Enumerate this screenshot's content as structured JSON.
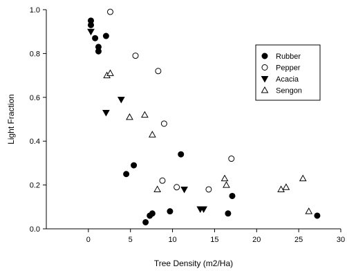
{
  "chart_data": {
    "type": "scatter",
    "title": "",
    "xlabel": "Tree Density (m2/Ha)",
    "ylabel": "Light Fraction",
    "xlim": [
      -5,
      30
    ],
    "ylim": [
      0,
      1.0
    ],
    "xticks": [
      0,
      5,
      10,
      15,
      20,
      25,
      30
    ],
    "yticks": [
      0.0,
      0.2,
      0.4,
      0.6,
      0.8,
      1.0
    ],
    "xtick_labels": [
      "0",
      "5",
      "10",
      "15",
      "20",
      "25",
      "30"
    ],
    "ytick_labels": [
      "0.0",
      "0.2",
      "0.4",
      "0.6",
      "0.8",
      "1.0"
    ],
    "grid": false,
    "legend_position": "top-right",
    "series": [
      {
        "name": "Rubber",
        "marker": "filled-circle",
        "color": "#000000",
        "points": [
          [
            0.3,
            0.95
          ],
          [
            0.3,
            0.93
          ],
          [
            0.8,
            0.87
          ],
          [
            1.2,
            0.83
          ],
          [
            1.2,
            0.81
          ],
          [
            2.1,
            0.88
          ],
          [
            4.5,
            0.25
          ],
          [
            5.4,
            0.29
          ],
          [
            6.8,
            0.03
          ],
          [
            7.3,
            0.06
          ],
          [
            7.6,
            0.07
          ],
          [
            9.7,
            0.08
          ],
          [
            11.0,
            0.34
          ],
          [
            16.6,
            0.07
          ],
          [
            17.1,
            0.15
          ],
          [
            27.2,
            0.06
          ]
        ]
      },
      {
        "name": "Pepper",
        "marker": "open-circle",
        "color": "#000000",
        "points": [
          [
            2.6,
            0.99
          ],
          [
            5.6,
            0.79
          ],
          [
            8.3,
            0.72
          ],
          [
            8.8,
            0.22
          ],
          [
            9.0,
            0.48
          ],
          [
            10.5,
            0.19
          ],
          [
            14.3,
            0.18
          ],
          [
            17.0,
            0.32
          ]
        ]
      },
      {
        "name": "Acacia",
        "marker": "filled-triangle-down",
        "color": "#000000",
        "points": [
          [
            0.3,
            0.9
          ],
          [
            2.1,
            0.53
          ],
          [
            3.9,
            0.59
          ],
          [
            11.4,
            0.18
          ],
          [
            13.3,
            0.09
          ],
          [
            13.7,
            0.09
          ]
        ]
      },
      {
        "name": "Sengon",
        "marker": "open-triangle-up",
        "color": "#000000",
        "points": [
          [
            2.2,
            0.7
          ],
          [
            2.6,
            0.71
          ],
          [
            4.9,
            0.51
          ],
          [
            6.7,
            0.52
          ],
          [
            7.6,
            0.43
          ],
          [
            8.2,
            0.18
          ],
          [
            16.2,
            0.23
          ],
          [
            16.4,
            0.2
          ],
          [
            22.9,
            0.18
          ],
          [
            23.5,
            0.19
          ],
          [
            25.5,
            0.23
          ],
          [
            26.2,
            0.08
          ]
        ]
      }
    ]
  }
}
